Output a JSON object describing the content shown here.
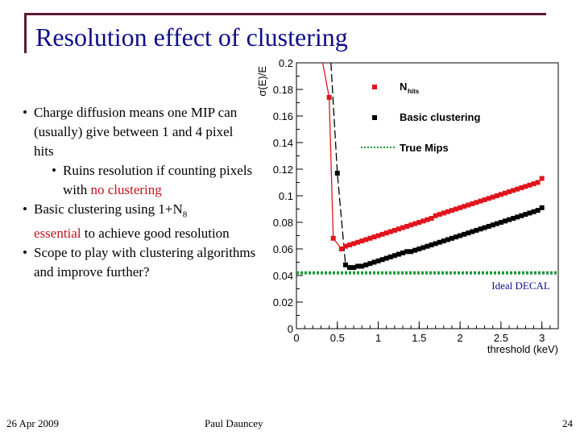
{
  "slide": {
    "title": "Resolution effect of clustering",
    "bullets": {
      "b1": "Charge diffusion means one MIP can (usually) give between 1 and 4 pixel hits",
      "b2_prefix": "Ruins resolution if counting pixels with ",
      "b2_red": "no clustering",
      "b3_prefix": "Basic clustering using 1+N",
      "b3_sub": "8",
      "b3_red": "essential",
      "b3_suffix": " to achieve good resolution",
      "b4": "Scope to play with clustering algorithms and improve further?"
    },
    "footer": {
      "date": "26 Apr 2009",
      "author": "Paul Dauncey",
      "page": "24"
    },
    "colors": {
      "title": "#0d0d8a",
      "frame": "#5a1a35",
      "highlight": "#c0141c"
    }
  },
  "chart_data": {
    "type": "line",
    "title": "",
    "xlabel": "threshold (keV)",
    "ylabel": "σ(E)/E",
    "xlim": [
      0,
      3.2
    ],
    "ylim": [
      0,
      0.2
    ],
    "x_ticks": [
      0,
      0.5,
      1,
      1.5,
      2,
      2.5,
      3
    ],
    "x_tick_labels": [
      "0",
      "0.5",
      "1",
      "1.5",
      "2",
      "2.5",
      "3"
    ],
    "y_ticks": [
      0,
      0.02,
      0.04,
      0.06,
      0.08,
      0.1,
      0.12,
      0.14,
      0.16,
      0.18,
      0.2
    ],
    "y_tick_labels": [
      "0",
      "0.02",
      "0.04",
      "0.06",
      "0.08",
      "0.1",
      "0.12",
      "0.14",
      "0.16",
      "0.18",
      "0.2"
    ],
    "legend": {
      "placement": "top-right",
      "labels": [
        "N_hits",
        "Basic clustering",
        "True Mips"
      ]
    },
    "series": [
      {
        "name": "N_hits",
        "color": "#e0141c",
        "marker": "square",
        "x": [
          0.4,
          0.45,
          0.55,
          0.6,
          0.65,
          0.7,
          0.75,
          0.8,
          0.85,
          0.9,
          0.95,
          1.0,
          1.05,
          1.1,
          1.15,
          1.2,
          1.25,
          1.3,
          1.35,
          1.4,
          1.45,
          1.5,
          1.55,
          1.6,
          1.65,
          1.7,
          1.75,
          1.8,
          1.85,
          1.9,
          1.95,
          2.0,
          2.05,
          2.1,
          2.15,
          2.2,
          2.25,
          2.3,
          2.35,
          2.4,
          2.45,
          2.5,
          2.55,
          2.6,
          2.65,
          2.7,
          2.75,
          2.8,
          2.85,
          2.9,
          2.95,
          3.0
        ],
        "y": [
          0.174,
          0.068,
          0.06,
          0.062,
          0.063,
          0.064,
          0.065,
          0.066,
          0.067,
          0.068,
          0.069,
          0.07,
          0.071,
          0.072,
          0.073,
          0.074,
          0.075,
          0.076,
          0.077,
          0.078,
          0.079,
          0.08,
          0.081,
          0.082,
          0.083,
          0.085,
          0.086,
          0.087,
          0.088,
          0.089,
          0.09,
          0.091,
          0.092,
          0.093,
          0.094,
          0.095,
          0.096,
          0.097,
          0.098,
          0.099,
          0.1,
          0.101,
          0.102,
          0.103,
          0.104,
          0.105,
          0.106,
          0.107,
          0.108,
          0.109,
          0.11,
          0.113
        ],
        "entry_curve_from_y": 0.2
      },
      {
        "name": "Basic clustering",
        "color": "#000000",
        "marker": "square",
        "x": [
          0.5,
          0.6,
          0.65,
          0.7,
          0.75,
          0.8,
          0.85,
          0.9,
          0.95,
          1.0,
          1.05,
          1.1,
          1.15,
          1.2,
          1.25,
          1.3,
          1.35,
          1.4,
          1.45,
          1.5,
          1.55,
          1.6,
          1.65,
          1.7,
          1.75,
          1.8,
          1.85,
          1.9,
          1.95,
          2.0,
          2.05,
          2.1,
          2.15,
          2.2,
          2.25,
          2.3,
          2.35,
          2.4,
          2.45,
          2.5,
          2.55,
          2.6,
          2.65,
          2.7,
          2.75,
          2.8,
          2.85,
          2.9,
          2.95,
          3.0
        ],
        "y": [
          0.117,
          0.048,
          0.046,
          0.046,
          0.047,
          0.047,
          0.048,
          0.049,
          0.05,
          0.051,
          0.052,
          0.053,
          0.054,
          0.055,
          0.056,
          0.057,
          0.058,
          0.058,
          0.059,
          0.06,
          0.061,
          0.062,
          0.063,
          0.064,
          0.065,
          0.066,
          0.067,
          0.068,
          0.069,
          0.07,
          0.071,
          0.072,
          0.073,
          0.074,
          0.075,
          0.076,
          0.077,
          0.078,
          0.079,
          0.08,
          0.081,
          0.082,
          0.083,
          0.084,
          0.085,
          0.086,
          0.087,
          0.088,
          0.089,
          0.091
        ],
        "entry_curve_from_y": 0.2
      },
      {
        "name": "True Mips",
        "color": "#1e9a3a",
        "style": "dotted",
        "x": [
          0,
          3.2
        ],
        "y": [
          0.042,
          0.042
        ]
      }
    ],
    "annotations": [
      {
        "text": "Ideal DECAL",
        "color": "#0d0d8a",
        "x": 3.1,
        "y": 0.032
      }
    ]
  }
}
